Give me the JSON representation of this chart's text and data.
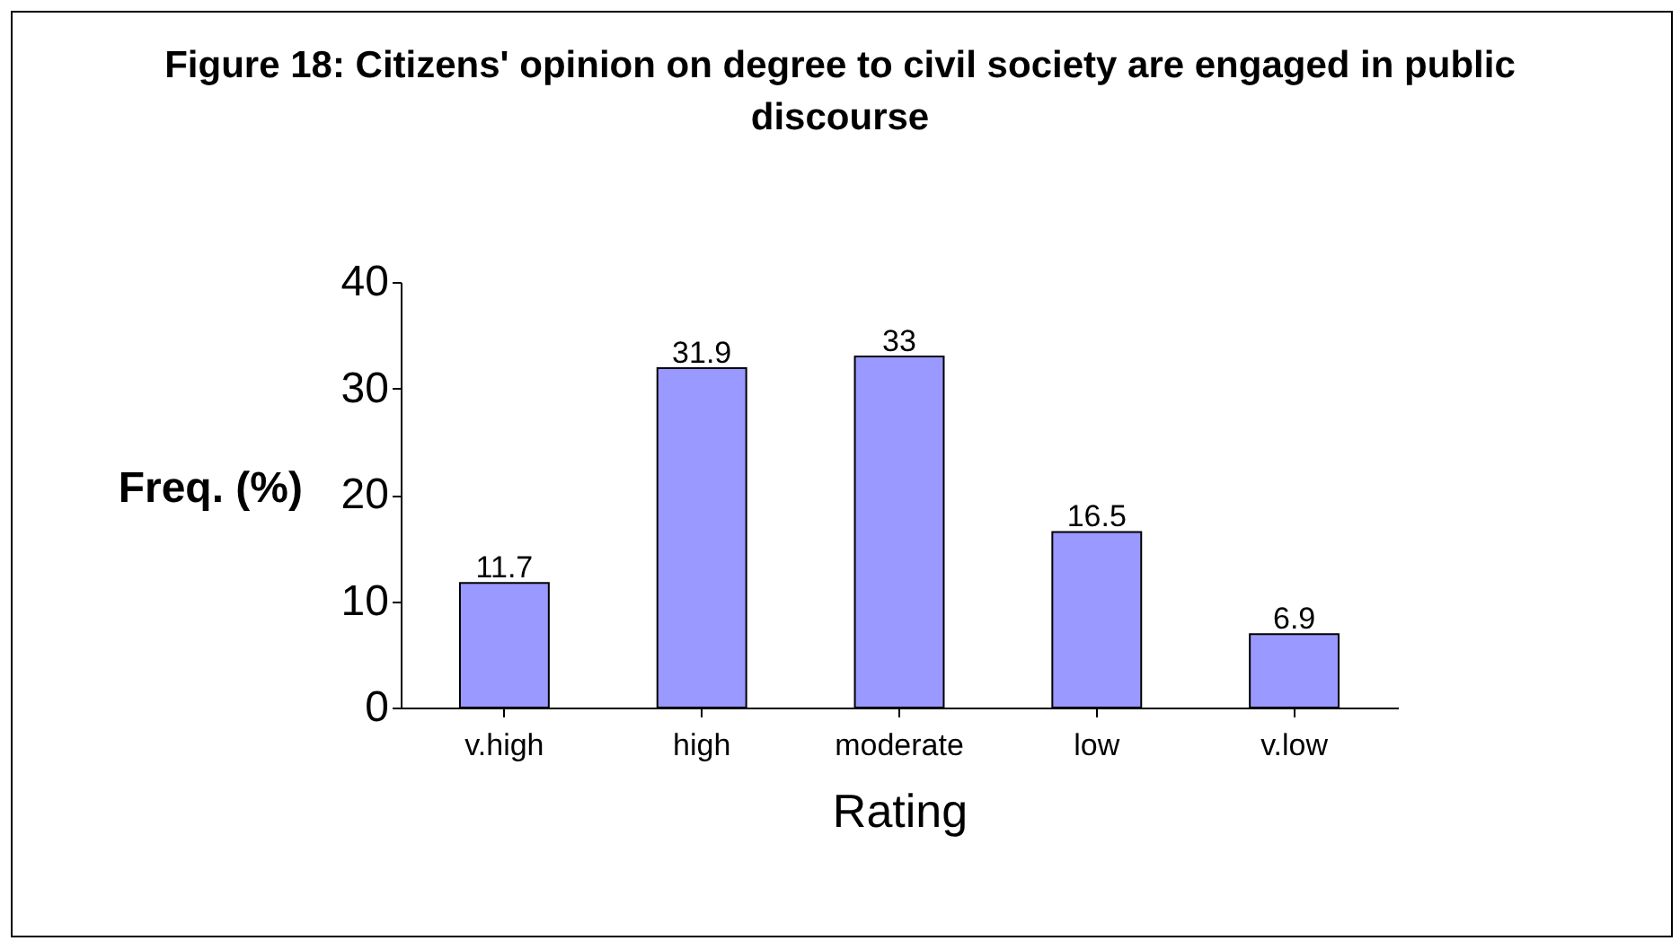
{
  "chart_data": {
    "type": "bar",
    "title": "Figure 18: Citizens' opinion on degree to civil society are engaged in public discourse",
    "xlabel": "Rating",
    "ylabel": "Freq. (%)",
    "categories": [
      "v.high",
      "high",
      "moderate",
      "low",
      "v.low"
    ],
    "values": [
      11.7,
      31.9,
      33,
      16.5,
      6.9
    ],
    "color": "#9999ff",
    "ylim": [
      0,
      40
    ],
    "yticks": [
      0,
      10,
      20,
      30,
      40
    ],
    "grid": false,
    "data_labels": true
  }
}
